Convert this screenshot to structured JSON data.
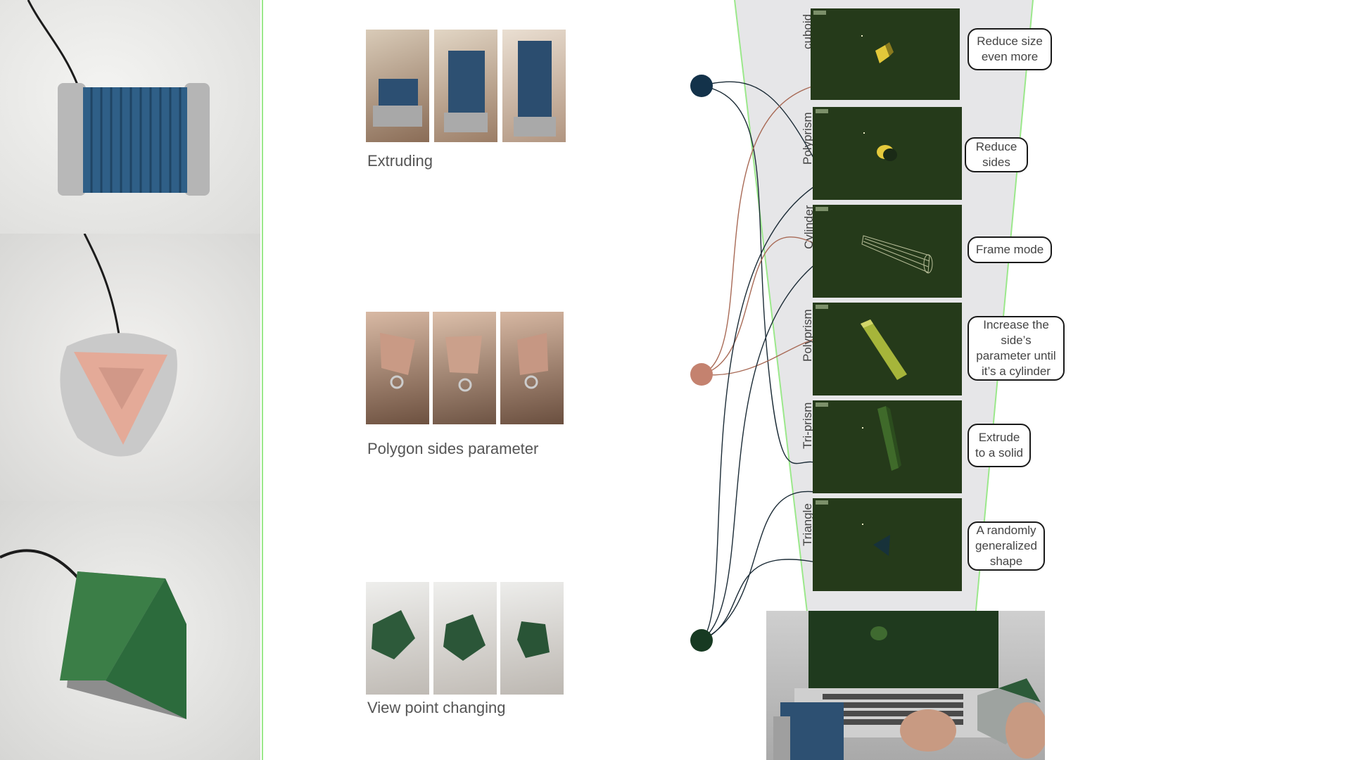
{
  "captions": {
    "extruding": "Extruding",
    "polygon_sides": "Polygon sides parameter",
    "view_point": "View point changing"
  },
  "shape_labels": [
    "cuboid",
    "Polyprism",
    "Cylinder",
    "Polyprism",
    "Tri-prism",
    "Triangle"
  ],
  "bubbles": [
    "Reduce size even more",
    "Reduce sides",
    "Frame mode",
    "Increase the side’s parameter until it’s a cylinder",
    "Extrude to a solid",
    "A randomly generalized shape"
  ],
  "colors": {
    "node_blue": "#13324a",
    "node_pink": "#c4826f",
    "node_green": "#173a22",
    "accent_green": "#9be88b",
    "funnel_gray": "#e6e6e8",
    "screen_green": "#253a1a"
  }
}
